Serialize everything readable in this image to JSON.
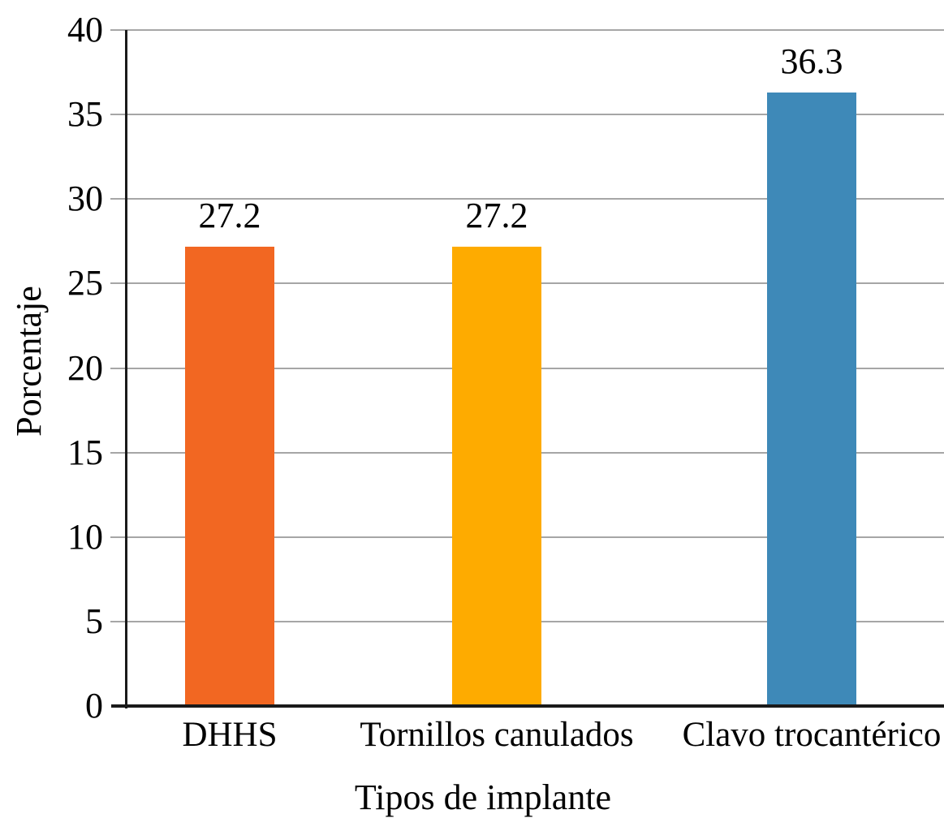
{
  "chart_data": {
    "type": "bar",
    "title": "",
    "xlabel": "Tipos de implante",
    "ylabel": "Porcentaje",
    "categories": [
      "DHHS",
      "Tornillos canulados",
      "Clavo trocantérico"
    ],
    "values": [
      27.2,
      27.2,
      36.3
    ],
    "data_labels": [
      "27.2",
      "27.2",
      "36.3"
    ],
    "bar_colors": [
      "#f26722",
      "#feab00",
      "#3e89b8"
    ],
    "ylim": [
      0,
      40
    ],
    "yticks": [
      0,
      5,
      10,
      15,
      20,
      25,
      30,
      35,
      40
    ],
    "ytick_labels": [
      "0",
      "5",
      "10",
      "15",
      "20",
      "25",
      "30",
      "35",
      "40"
    ],
    "grid": "horizontal",
    "gridline_color": "#a6a6a6",
    "axis_color": "#1a1a1a",
    "text_color": "#000000",
    "legend": "none",
    "background_color": "#ffffff"
  }
}
